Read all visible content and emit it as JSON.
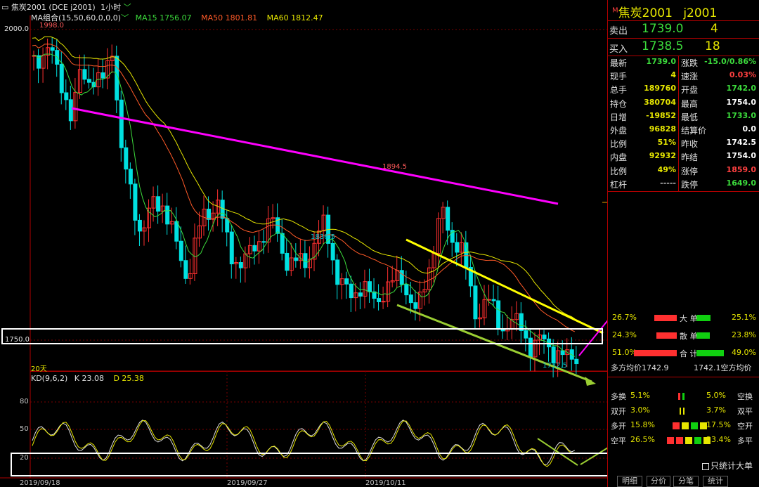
{
  "header": {
    "window_icon": "square-arrow-icon",
    "title": "焦炭2001 (DCE j2001)",
    "period": "1小时",
    "dropdown_icon": "chevron-down-icon"
  },
  "ma_bar": {
    "name": "MA组合(15,50,60,0,0,0)",
    "ma15_label": "MA15 1756.07",
    "ma50_label": "MA50 1801.81",
    "ma60_label": "MA60 1812.47",
    "colors": {
      "ma15": "#3cdc3c",
      "ma50": "#ff5a28",
      "ma60": "#e6e600"
    }
  },
  "price_axis": {
    "top_label": "2000.0",
    "low_label": "1750.0"
  },
  "annotations": {
    "high": "1998.0",
    "mid_high": "1894.5",
    "mid_low": "1836.5",
    "low": "1732.5",
    "days": "20天"
  },
  "kd": {
    "name": "KD(9,6,2)",
    "k_label": "K 23.08",
    "d_label": "D 25.38",
    "levels": [
      "80",
      "50",
      "20"
    ]
  },
  "dates": [
    "2019/09/18",
    "2019/09/27",
    "2019/10/11"
  ],
  "quote": {
    "symbol": "焦炭2001",
    "code": "j2001",
    "marker": "M",
    "sell_label": "卖出",
    "sell_price": "1739.0",
    "sell_qty": "4",
    "buy_label": "买入",
    "buy_price": "1738.5",
    "buy_qty": "18",
    "rows": [
      {
        "l1": "最新",
        "v1": "1739.0",
        "c1": "#3cdc3c",
        "l2": "涨跌",
        "v2": "-15.0/0.86%",
        "c2": "#3cdc3c"
      },
      {
        "l1": "现手",
        "v1": "4",
        "c1": "#e6e600",
        "l2": "速涨",
        "v2": "0.03%",
        "c2": "#ff4040"
      },
      {
        "l1": "总手",
        "v1": "189760",
        "c1": "#e6e600",
        "l2": "开盘",
        "v2": "1742.0",
        "c2": "#3cdc3c"
      },
      {
        "l1": "持仓",
        "v1": "380704",
        "c1": "#e6e600",
        "l2": "最高",
        "v2": "1754.0",
        "c2": "#ffffff"
      },
      {
        "l1": "日增",
        "v1": "-19852",
        "c1": "#e6e600",
        "l2": "最低",
        "v2": "1733.0",
        "c2": "#3cdc3c"
      },
      {
        "l1": "外盘",
        "v1": "96828",
        "c1": "#e6e600",
        "l2": "结算价",
        "v2": "0.0",
        "c2": "#ffffff"
      },
      {
        "l1": "比例",
        "v1": "51%",
        "c1": "#e6e600",
        "l2": "昨收",
        "v2": "1742.5",
        "c2": "#ffffff"
      },
      {
        "l1": "内盘",
        "v1": "92932",
        "c1": "#e6e600",
        "l2": "昨结",
        "v2": "1754.0",
        "c2": "#ffffff"
      },
      {
        "l1": "比例",
        "v1": "49%",
        "c1": "#e6e600",
        "l2": "涨停",
        "v2": "1859.0",
        "c2": "#ff4040"
      },
      {
        "l1": "杠杆",
        "v1": "-----",
        "c1": "#c0c0c0",
        "l2": "跌停",
        "v2": "1649.0",
        "c2": "#3cdc3c"
      }
    ]
  },
  "orders": {
    "big": {
      "left": "26.7%",
      "label": "大 单",
      "right": "25.1%",
      "red_fraction": 0.267,
      "green_fraction": 0.251
    },
    "retail": {
      "left": "24.3%",
      "label": "散 单",
      "right": "23.8%",
      "red_fraction": 0.243,
      "green_fraction": 0.238
    },
    "total": {
      "left": "51.0%",
      "label": "合 计",
      "right": "49.0%",
      "red_fraction": 0.51,
      "green_fraction": 0.49
    },
    "long_avg": "多方均价1742.9",
    "short_avg": "1742.1空方均价"
  },
  "positions": [
    {
      "l": "多换",
      "lv": "5.1%",
      "rv": "5.0%",
      "r": "空换"
    },
    {
      "l": "双开",
      "lv": "3.0%",
      "rv": "3.7%",
      "r": "双平"
    },
    {
      "l": "多开",
      "lv": "15.8%",
      "rv": "17.5%",
      "r": "空开"
    },
    {
      "l": "空平",
      "lv": "26.5%",
      "rv": "23.4%",
      "r": "多平"
    }
  ],
  "only_big_label": "只统计大单",
  "tabs": [
    "明细",
    "分价",
    "分笔",
    "统计"
  ]
}
